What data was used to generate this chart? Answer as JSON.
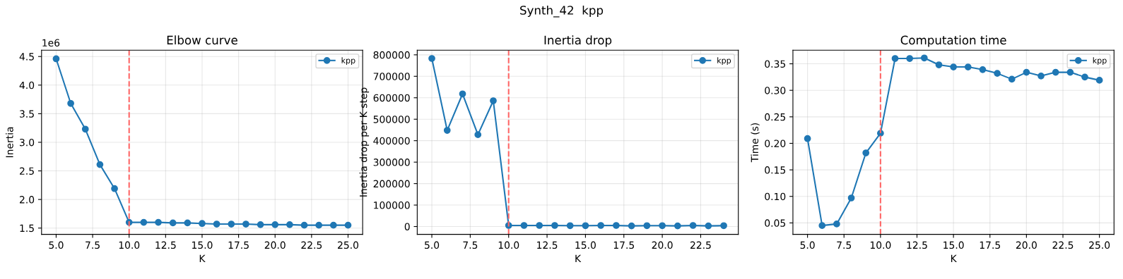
{
  "chart_data": [
    {
      "type": "line",
      "title": "Elbow curve",
      "xlabel": "K",
      "ylabel": "Inertia",
      "annotations": [
        "Synth_42  kpp",
        "1e6"
      ],
      "x": [
        5,
        6,
        7,
        8,
        9,
        10,
        11,
        12,
        13,
        14,
        15,
        16,
        17,
        18,
        19,
        20,
        21,
        22,
        23,
        24,
        25
      ],
      "series": [
        {
          "name": "kpp",
          "color": "#1f77b4",
          "values": [
            4.46,
            3.68,
            3.23,
            2.61,
            2.19,
            1.6,
            1.6,
            1.6,
            1.59,
            1.59,
            1.58,
            1.57,
            1.57,
            1.57,
            1.56,
            1.56,
            1.56,
            1.55,
            1.55,
            1.55,
            1.55
          ]
        }
      ],
      "xlim": [
        4,
        26
      ],
      "xticks": [
        {
          "value": 5,
          "label": "5.0"
        },
        7.5,
        {
          "value": 10,
          "label": "10.0"
        },
        12.5,
        {
          "value": 15,
          "label": "15.0"
        },
        17.5,
        {
          "value": 20,
          "label": "20.0"
        },
        22.5,
        {
          "value": 25,
          "label": "25.0"
        }
      ],
      "ylim": [
        1.39,
        4.61
      ],
      "yticks": [
        1.5,
        {
          "value": 2,
          "label": "2.0"
        },
        2.5,
        {
          "value": 3,
          "label": "3.0"
        },
        3.5,
        {
          "value": 4,
          "label": "4.0"
        },
        4.5
      ],
      "ref_lines": [
        {
          "axis": "x",
          "value": 10,
          "color": "#ff6666",
          "line_style": "dashed"
        }
      ],
      "grid": true,
      "legend": "top right",
      "marker": "circle",
      "line_style": "solid"
    },
    {
      "type": "line",
      "title": "Inertia drop",
      "xlabel": "K",
      "ylabel": "Inertia drop per K step",
      "x": [
        5,
        6,
        7,
        8,
        9,
        10,
        11,
        12,
        13,
        14,
        15,
        16,
        17,
        18,
        19,
        20,
        21,
        22,
        23,
        24
      ],
      "series": [
        {
          "name": "kpp",
          "color": "#1f77b4",
          "values": [
            783000,
            448000,
            618000,
            428000,
            586000,
            5000,
            5000,
            5000,
            5000,
            4000,
            4000,
            5000,
            5000,
            3000,
            4000,
            4000,
            3000,
            5000,
            3000,
            4000
          ]
        }
      ],
      "xlim": [
        4.05,
        24.95
      ],
      "xticks": [
        {
          "value": 5,
          "label": "5.0"
        },
        7.5,
        {
          "value": 10,
          "label": "10.0"
        },
        12.5,
        {
          "value": 15,
          "label": "15.0"
        },
        17.5,
        {
          "value": 20,
          "label": "20.0"
        },
        22.5
      ],
      "ylim": [
        -36500,
        821500
      ],
      "yticks": [
        0,
        100000,
        200000,
        300000,
        400000,
        500000,
        600000,
        700000,
        800000
      ],
      "ref_lines": [
        {
          "axis": "x",
          "value": 10,
          "color": "#ff6666",
          "line_style": "dashed"
        }
      ],
      "grid": true,
      "legend": "top right",
      "marker": "circle",
      "line_style": "solid"
    },
    {
      "type": "line",
      "title": "Computation time",
      "xlabel": "K",
      "ylabel": "Time (s)",
      "x": [
        5,
        6,
        7,
        8,
        9,
        10,
        11,
        12,
        13,
        14,
        15,
        16,
        17,
        18,
        19,
        20,
        21,
        22,
        23,
        24,
        25
      ],
      "series": [
        {
          "name": "kpp",
          "color": "#1f77b4",
          "values": [
            0.209,
            0.045,
            0.048,
            0.097,
            0.182,
            0.219,
            0.36,
            0.36,
            0.361,
            0.348,
            0.344,
            0.344,
            0.339,
            0.332,
            0.321,
            0.334,
            0.327,
            0.334,
            0.334,
            0.325,
            0.319
          ]
        }
      ],
      "xlim": [
        4.0,
        26.0
      ],
      "xticks": [
        {
          "value": 5,
          "label": "5.0"
        },
        7.5,
        {
          "value": 10,
          "label": "10.0"
        },
        12.5,
        {
          "value": 15,
          "label": "15.0"
        },
        17.5,
        {
          "value": 20,
          "label": "20.0"
        },
        22.5,
        {
          "value": 25,
          "label": "25.0"
        }
      ],
      "ylim": [
        0.0284,
        0.3756
      ],
      "yticks": [
        {
          "value": 0.05,
          "label": "0.05"
        },
        {
          "value": 0.1,
          "label": "0.10"
        },
        {
          "value": 0.15,
          "label": "0.15"
        },
        {
          "value": 0.2,
          "label": "0.20"
        },
        {
          "value": 0.25,
          "label": "0.25"
        },
        {
          "value": 0.3,
          "label": "0.30"
        },
        {
          "value": 0.35,
          "label": "0.35"
        }
      ],
      "ref_lines": [
        {
          "axis": "x",
          "value": 10,
          "color": "#ff6666",
          "line_style": "dashed"
        }
      ],
      "grid": true,
      "legend": "top right",
      "marker": "circle",
      "line_style": "solid"
    }
  ]
}
